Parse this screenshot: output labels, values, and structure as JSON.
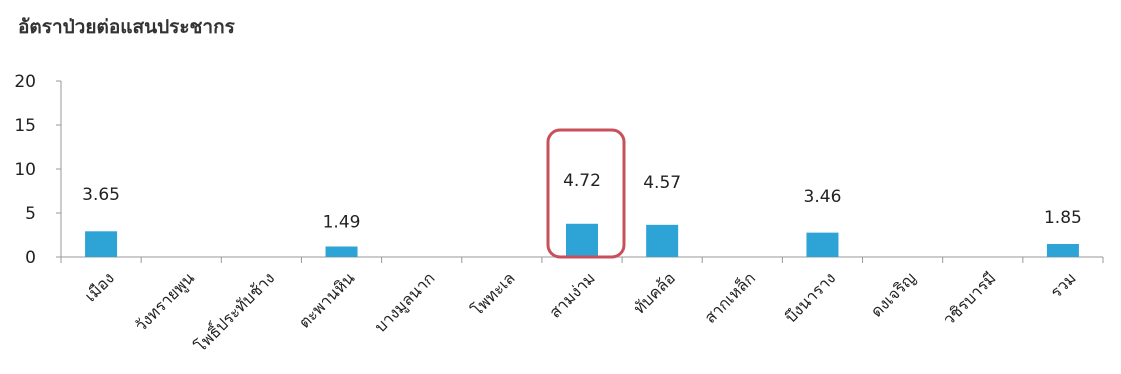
{
  "chart_data": {
    "type": "bar",
    "title": "อัตราป่วยต่อแสนประชากร",
    "categories": [
      "เมือง",
      "วังทรายพูน",
      "โพธิ์ประทับช้าง",
      "ตะพานหิน",
      "บางมูลนาก",
      "โพทะเล",
      "สามง่าม",
      "ทับคล้อ",
      "สากเหล็ก",
      "บึงนาราง",
      "ดงเจริญ",
      "วชิรบารมี",
      "รวม"
    ],
    "values": [
      3.65,
      0,
      0,
      1.49,
      0,
      0,
      4.72,
      4.57,
      0,
      3.46,
      0,
      0,
      1.85
    ],
    "data_labels": [
      "3.65",
      "",
      "",
      "1.49",
      "",
      "",
      "4.72",
      "4.57",
      "",
      "3.46",
      "",
      "",
      "1.85"
    ],
    "yticks": [
      "0",
      "5",
      "10",
      "15",
      "20"
    ],
    "ylim": [
      0,
      20
    ],
    "highlighted_category": "สามง่าม",
    "grid": false,
    "legend": "none",
    "colors": {
      "bar": "#2ea3d6",
      "highlight": "#c8505a",
      "axis": "#999999",
      "text": "#222222"
    }
  }
}
